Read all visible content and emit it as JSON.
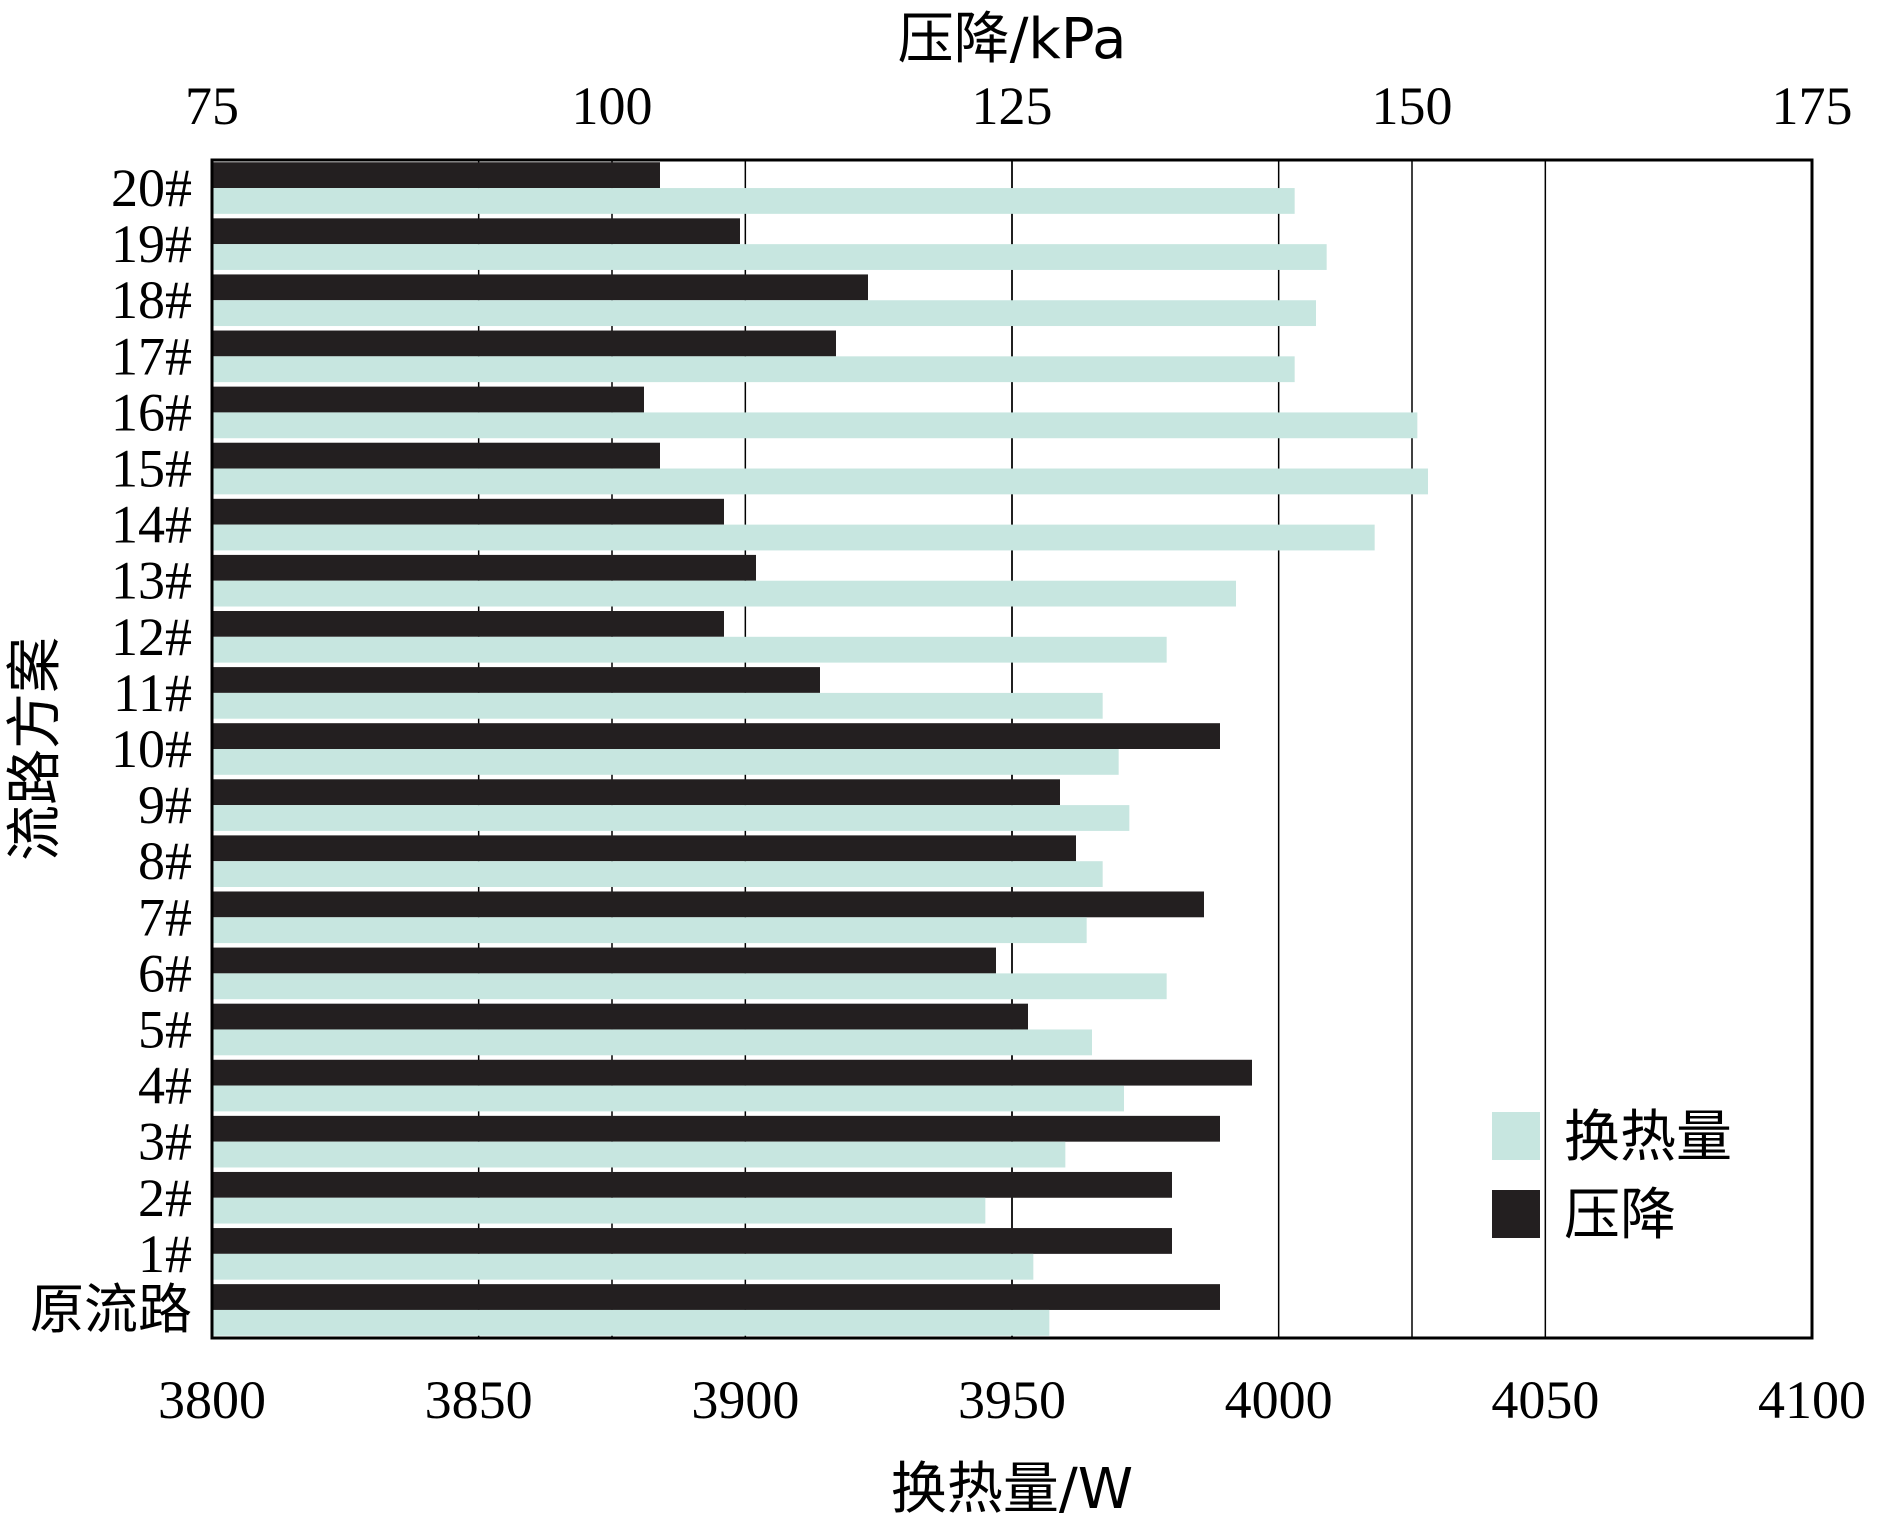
{
  "chart_data": {
    "type": "bar",
    "orientation": "horizontal",
    "categories": [
      "原流路",
      "1#",
      "2#",
      "3#",
      "4#",
      "5#",
      "6#",
      "7#",
      "8#",
      "9#",
      "10#",
      "11#",
      "12#",
      "13#",
      "14#",
      "15#",
      "16#",
      "17#",
      "18#",
      "19#",
      "20#"
    ],
    "series": [
      {
        "name": "换热量",
        "axis": "bottom",
        "color": "#c7e6e0",
        "values": [
          3957,
          3954,
          3945,
          3960,
          3971,
          3965,
          3979,
          3964,
          3967,
          3972,
          3970,
          3967,
          3979,
          3992,
          4018,
          4028,
          4026,
          4003,
          4007,
          4009,
          4003
        ]
      },
      {
        "name": "压降",
        "axis": "top",
        "color": "#231f20",
        "values": [
          138,
          135,
          135,
          138,
          140,
          126,
          124,
          137,
          129,
          128,
          138,
          113,
          107,
          109,
          107,
          103,
          102,
          114,
          116,
          108,
          103
        ]
      }
    ],
    "xlabel_bottom": "换热量/W",
    "xlabel_top": "压降/kPa",
    "ylabel": "流路方案",
    "xlim_bottom": [
      3800,
      4100
    ],
    "xticks_bottom": [
      3800,
      3850,
      3900,
      3950,
      4000,
      4050,
      4100
    ],
    "xlim_top": [
      75,
      175
    ],
    "xticks_top": [
      75,
      100,
      125,
      150,
      175
    ],
    "grid": "vertical",
    "legend_position": "bottom-right"
  }
}
